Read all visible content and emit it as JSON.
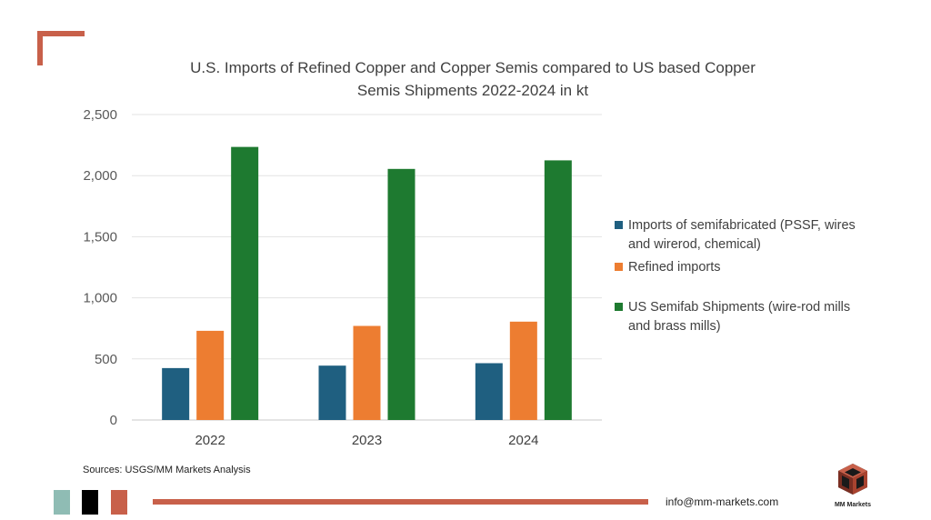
{
  "colors": {
    "accent": "#c8604a",
    "series": [
      "#1f5f80",
      "#ed7d31",
      "#1e7a30"
    ],
    "squares": [
      "#8fbcb4",
      "#000000",
      "#c8604a"
    ]
  },
  "chart_data": {
    "type": "bar",
    "title_line1": "U.S. Imports of Refined Copper and Copper Semis compared to  US based Copper",
    "title_line2": "Semis Shipments 2022-2024 in kt",
    "categories": [
      "2022",
      "2023",
      "2024"
    ],
    "series": [
      {
        "name": "Imports of semifabricated (PSSF, wires and wirerod, chemical)",
        "values": [
          425,
          445,
          465
        ]
      },
      {
        "name": "Refined imports",
        "values": [
          730,
          770,
          805
        ]
      },
      {
        "name": "US Semifab Shipments  (wire-rod mills and brass mills)",
        "values": [
          2235,
          2055,
          2125
        ]
      }
    ],
    "ylim": [
      0,
      2500
    ],
    "yticks": [
      0,
      500,
      1000,
      1500,
      2000,
      2500
    ],
    "ytick_labels": [
      "0",
      "500",
      "1,000",
      "1,500",
      "2,000",
      "2,500"
    ],
    "grid": true,
    "legend_position": "right"
  },
  "legend": {
    "items": [
      {
        "line1": "Imports of semifabricated (PSSF, wires",
        "line2": "and wirerod, chemical)"
      },
      {
        "line1": "Refined imports",
        "line2": ""
      },
      {
        "line1": "US Semifab Shipments  (wire-rod mills",
        "line2": "and brass mills)"
      }
    ]
  },
  "footer": {
    "sources": "Sources: USGS/MM Markets Analysis",
    "email": "info@mm-markets.com",
    "logo_text": "MM Markets"
  }
}
